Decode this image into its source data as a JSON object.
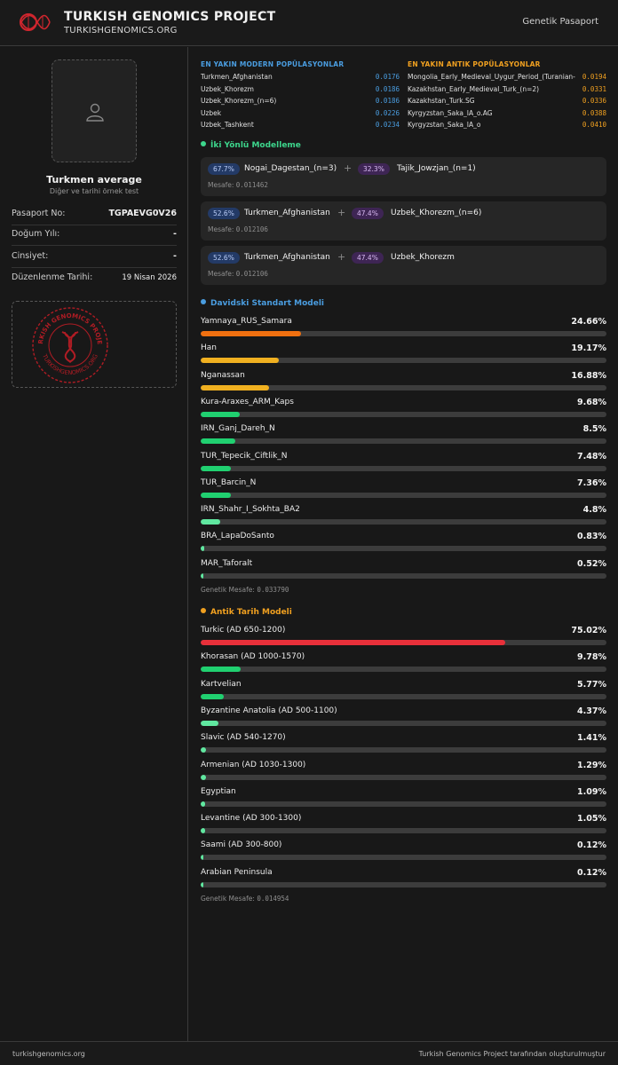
{
  "header": {
    "title": "TURKISH GENOMICS PROJECT",
    "url": "TURKISHGENOMICS.ORG",
    "nav_label": "Genetik Pasaport"
  },
  "profile": {
    "name": "Turkmen average",
    "subtitle": "Diğer ve tarihi örnek test",
    "fields": [
      {
        "label": "Pasaport No:",
        "value": "TGPAEVG0V26"
      },
      {
        "label": "Doğum Yılı:",
        "value": "-"
      },
      {
        "label": "Cinsiyet:",
        "value": "-"
      },
      {
        "label": "Düzenlenme Tarihi:",
        "value": "19 Nisan 2026"
      }
    ],
    "seal_text": "TURKISH GENOMICS PROJECT · TURKISHGENOMICS.ORG"
  },
  "closest": {
    "modern_title": "EN YAKIN MODERN POPÜLASYONLAR",
    "ancient_title": "EN YAKIN ANTIK POPÜLASYONLAR",
    "modern": [
      {
        "name": "Turkmen_Afghanistan",
        "distance": "0.0176"
      },
      {
        "name": "Uzbek_Khorezm",
        "distance": "0.0186"
      },
      {
        "name": "Uzbek_Khorezm_(n=6)",
        "distance": "0.0186"
      },
      {
        "name": "Uzbek",
        "distance": "0.0226"
      },
      {
        "name": "Uzbek_Tashkent",
        "distance": "0.0234"
      }
    ],
    "ancient": [
      {
        "name": "Mongolia_Early_Medieval_Uygur_Period_(Turanian-",
        "distance": "0.0194"
      },
      {
        "name": "Kazakhstan_Early_Medieval_Turk_(n=2)",
        "distance": "0.0331"
      },
      {
        "name": "Kazakhstan_Turk.SG",
        "distance": "0.0336"
      },
      {
        "name": "Kyrgyzstan_Saka_IA_o.AG",
        "distance": "0.0388"
      },
      {
        "name": "Kyrgyzstan_Saka_IA_o",
        "distance": "0.0410"
      }
    ]
  },
  "two_way": {
    "title": "İki Yönlü Modelleme",
    "distance_label": "Mesafe:",
    "models": [
      {
        "pct_a": "67.7%",
        "pop_a": "Nogai_Dagestan_(n=3)",
        "pct_b": "32.3%",
        "pop_b": "Tajik_Jowzjan_(n=1)",
        "distance": "0.011462"
      },
      {
        "pct_a": "52.6%",
        "pop_a": "Turkmen_Afghanistan",
        "pct_b": "47.4%",
        "pop_b": "Uzbek_Khorezm_(n=6)",
        "distance": "0.012106"
      },
      {
        "pct_a": "52.6%",
        "pop_a": "Turkmen_Afghanistan",
        "pct_b": "47.4%",
        "pop_b": "Uzbek_Khorezm",
        "distance": "0.012106"
      }
    ]
  },
  "davidski": {
    "title": "Davidski Standart Modeli",
    "distance_label": "Genetik Mesafe:",
    "distance": "0.033790",
    "items": [
      {
        "name": "Yamnaya_RUS_Samara",
        "pct_label": "24.66%",
        "value": 24.66,
        "color": "#f07010"
      },
      {
        "name": "Han",
        "pct_label": "19.17%",
        "value": 19.17,
        "color": "#f0b020"
      },
      {
        "name": "Nganassan",
        "pct_label": "16.88%",
        "value": 16.88,
        "color": "#f0b020"
      },
      {
        "name": "Kura-Araxes_ARM_Kaps",
        "pct_label": "9.68%",
        "value": 9.68,
        "color": "#20d070"
      },
      {
        "name": "IRN_Ganj_Dareh_N",
        "pct_label": "8.5%",
        "value": 8.5,
        "color": "#20d070"
      },
      {
        "name": "TUR_Tepecik_Ciftlik_N",
        "pct_label": "7.48%",
        "value": 7.48,
        "color": "#20d070"
      },
      {
        "name": "TUR_Barcin_N",
        "pct_label": "7.36%",
        "value": 7.36,
        "color": "#20d070"
      },
      {
        "name": "IRN_Shahr_I_Sokhta_BA2",
        "pct_label": "4.8%",
        "value": 4.8,
        "color": "#60e8a0"
      },
      {
        "name": "BRA_LapaDoSanto",
        "pct_label": "0.83%",
        "value": 0.83,
        "color": "#60e8a0"
      },
      {
        "name": "MAR_Taforalt",
        "pct_label": "0.52%",
        "value": 0.52,
        "color": "#60e8a0"
      }
    ]
  },
  "antik": {
    "title": "Antik Tarih Modeli",
    "distance_label": "Genetik Mesafe:",
    "distance": "0.014954",
    "items": [
      {
        "name": "Turkic (AD 650-1200)",
        "pct_label": "75.02%",
        "value": 75.02,
        "color": "#e8303a"
      },
      {
        "name": "Khorasan (AD 1000-1570)",
        "pct_label": "9.78%",
        "value": 9.78,
        "color": "#20d070"
      },
      {
        "name": "Kartvelian",
        "pct_label": "5.77%",
        "value": 5.77,
        "color": "#20d070"
      },
      {
        "name": "Byzantine Anatolia (AD 500-1100)",
        "pct_label": "4.37%",
        "value": 4.37,
        "color": "#60e8a0"
      },
      {
        "name": "Slavic (AD 540-1270)",
        "pct_label": "1.41%",
        "value": 1.41,
        "color": "#60e8a0"
      },
      {
        "name": "Armenian (AD 1030-1300)",
        "pct_label": "1.29%",
        "value": 1.29,
        "color": "#60e8a0"
      },
      {
        "name": "Egyptian",
        "pct_label": "1.09%",
        "value": 1.09,
        "color": "#60e8a0"
      },
      {
        "name": "Levantine (AD 300-1300)",
        "pct_label": "1.05%",
        "value": 1.05,
        "color": "#60e8a0"
      },
      {
        "name": "Saami (AD 300-800)",
        "pct_label": "0.12%",
        "value": 0.12,
        "color": "#60e8a0"
      },
      {
        "name": "Arabian Peninsula",
        "pct_label": "0.12%",
        "value": 0.12,
        "color": "#60e8a0"
      }
    ]
  },
  "colors": {
    "modern_accent": "#4a9de0",
    "ancient_accent": "#f0a020",
    "two_way_accent": "#3dd68c",
    "brand_red": "#d0262e"
  },
  "footer": {
    "left": "turkishgenomics.org",
    "right": "Turkish Genomics Project tarafından oluşturulmuştur"
  }
}
